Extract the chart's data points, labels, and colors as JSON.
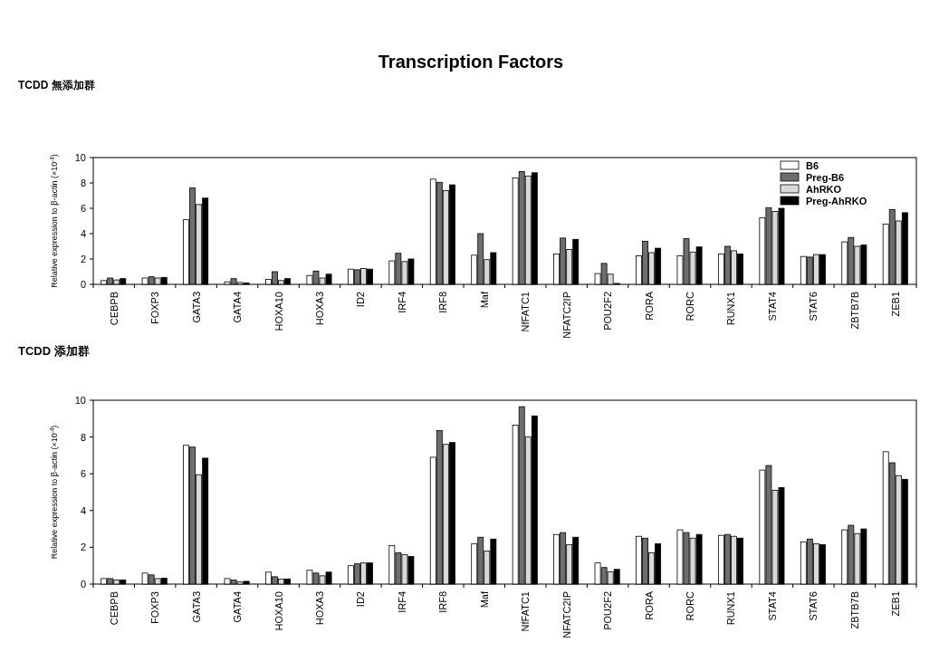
{
  "chart_data": [
    {
      "type": "bar",
      "title": "Transcription Factors",
      "subtitle": "TCDD 無添加群",
      "ylabel": "Relative expression to β-actin (×10$^{-4}$)",
      "categories": [
        "CEBPB",
        "FOXP3",
        "GATA3",
        "GATA4",
        "HOXA10",
        "HOXA3",
        "ID2",
        "IRF4",
        "IRF8",
        "Maf",
        "NfFATC1",
        "NFATC2IP",
        "POU2F2",
        "RORA",
        "RORC",
        "RUNX1",
        "STAT4",
        "STAT6",
        "ZBTB7B",
        "ZEB1"
      ],
      "series": [
        {
          "name": "B6",
          "color": "#ffffff",
          "values": [
            0.3,
            0.5,
            5.1,
            0.2,
            0.4,
            0.7,
            1.2,
            1.85,
            8.3,
            2.3,
            8.4,
            2.4,
            0.85,
            2.25,
            2.25,
            2.4,
            5.25,
            2.2,
            3.35,
            4.75
          ]
        },
        {
          "name": "Preg-B6",
          "color": "#6e6e6e",
          "values": [
            0.5,
            0.6,
            7.6,
            0.45,
            1.0,
            1.05,
            1.15,
            2.45,
            8.05,
            4.0,
            8.9,
            3.65,
            1.65,
            3.4,
            3.6,
            3.0,
            6.05,
            2.15,
            3.7,
            5.9
          ]
        },
        {
          "name": "AhRKO",
          "color": "#d9d9d9",
          "values": [
            0.35,
            0.5,
            6.3,
            0.15,
            0.3,
            0.5,
            1.25,
            1.8,
            7.4,
            1.95,
            8.55,
            2.75,
            0.8,
            2.5,
            2.55,
            2.65,
            5.75,
            2.35,
            3.0,
            5.0
          ]
        },
        {
          "name": "Preg-AhRKO",
          "color": "#000000",
          "values": [
            0.45,
            0.55,
            6.8,
            0.1,
            0.45,
            0.8,
            1.2,
            2.0,
            7.85,
            2.5,
            8.8,
            3.55,
            0.07,
            2.85,
            2.95,
            2.4,
            6.0,
            2.35,
            3.1,
            5.65
          ]
        }
      ],
      "ylim": [
        0,
        10
      ],
      "yticks": [
        0,
        2,
        4,
        6,
        8,
        10
      ],
      "legend": "top right"
    },
    {
      "type": "bar",
      "title": "TCDD 添加群",
      "ylabel": "Relative expression to β-actin (×10$^{-4}$)",
      "categories": [
        "CEBPB",
        "FOXP3",
        "GATA3",
        "GATA4",
        "HOXA10",
        "HOXA3",
        "ID2",
        "IRF4",
        "IRF8",
        "Maf",
        "NfFATC1",
        "NFATC2IP",
        "POU2F2",
        "RORA",
        "RORC",
        "RUNX1",
        "STAT4",
        "STAT6",
        "ZBTB7B",
        "ZEB1"
      ],
      "series": [
        {
          "color": "#ffffff",
          "values": [
            0.3,
            0.6,
            7.55,
            0.3,
            0.65,
            0.75,
            1.0,
            2.1,
            6.9,
            2.2,
            8.65,
            2.7,
            1.15,
            2.6,
            2.95,
            2.65,
            6.2,
            2.3,
            2.95,
            7.2
          ]
        },
        {
          "color": "#6e6e6e",
          "values": [
            0.3,
            0.5,
            7.45,
            0.22,
            0.4,
            0.6,
            1.1,
            1.7,
            8.35,
            2.55,
            9.65,
            2.8,
            0.9,
            2.5,
            2.8,
            2.7,
            6.45,
            2.45,
            3.2,
            6.6
          ]
        },
        {
          "color": "#d9d9d9",
          "values": [
            0.22,
            0.3,
            5.95,
            0.13,
            0.27,
            0.45,
            1.15,
            1.6,
            7.6,
            1.8,
            8.0,
            2.15,
            0.67,
            1.7,
            2.5,
            2.6,
            5.1,
            2.2,
            2.75,
            5.9
          ]
        },
        {
          "color": "#000000",
          "values": [
            0.22,
            0.32,
            6.85,
            0.15,
            0.28,
            0.65,
            1.15,
            1.5,
            7.7,
            2.45,
            9.15,
            2.55,
            0.8,
            2.2,
            2.7,
            2.5,
            5.25,
            2.15,
            3.0,
            5.7
          ]
        }
      ],
      "ylim": [
        0,
        10
      ],
      "yticks": [
        0,
        2,
        4,
        6,
        8,
        10
      ],
      "legend": false
    }
  ]
}
